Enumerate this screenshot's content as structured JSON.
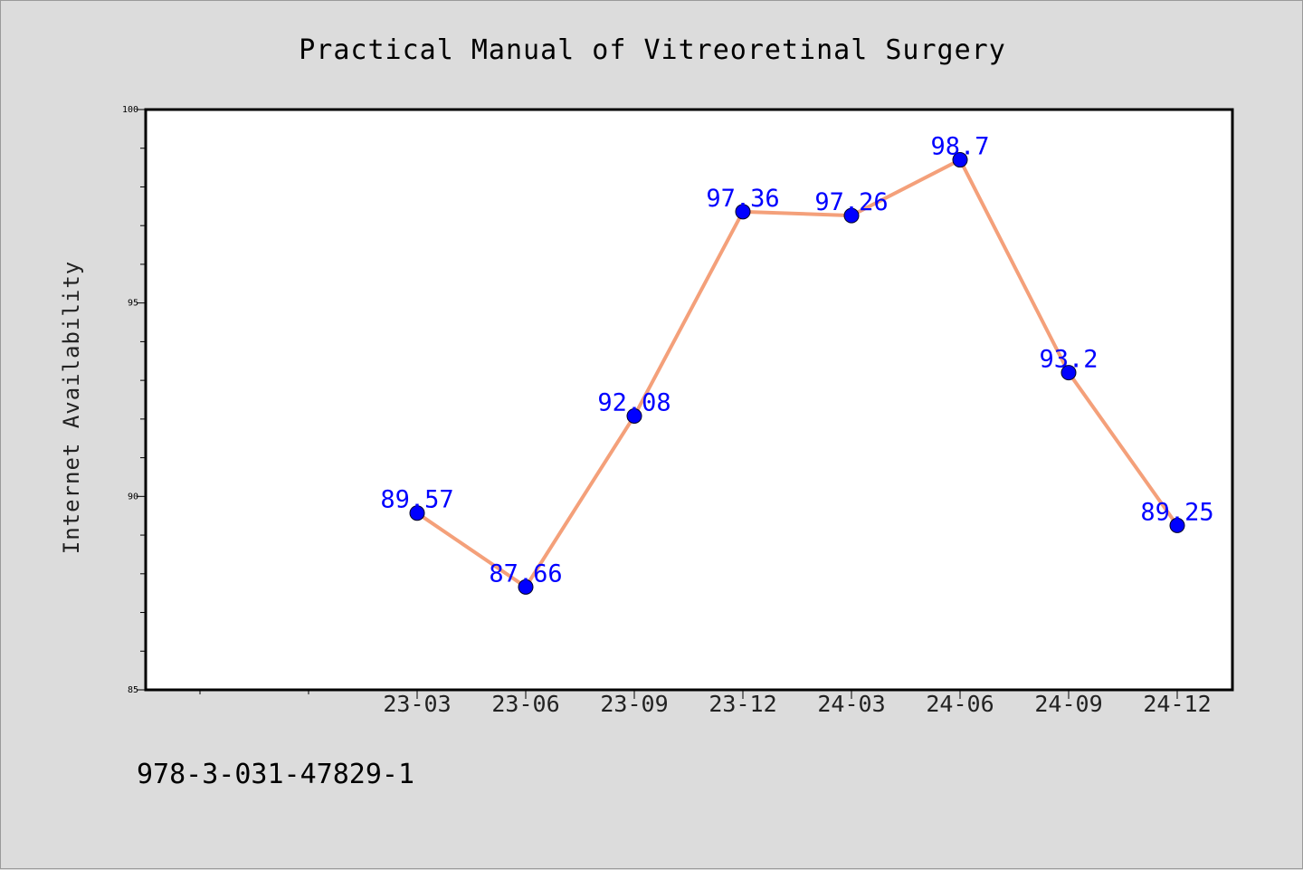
{
  "chart_data": {
    "type": "line",
    "title": "Practical Manual of Vitreoretinal Surgery",
    "xlabel": "",
    "ylabel": "Internet Availability",
    "categories": [
      "23-03",
      "23-06",
      "23-09",
      "23-12",
      "24-03",
      "24-06",
      "24-09",
      "24-12"
    ],
    "series": [
      {
        "values": [
          89.57,
          87.66,
          92.08,
          97.36,
          97.26,
          98.7,
          93.2,
          89.25
        ],
        "line_color": "#f4a07a",
        "marker_color": "#0000ff"
      }
    ],
    "data_labels": [
      "89.57",
      "87.66",
      "92.08",
      "97.36",
      "97.26",
      "98.7",
      "93.2",
      "89.25"
    ],
    "ylim": [
      85,
      100
    ],
    "yticks": [
      "85",
      "90",
      "95",
      "100"
    ],
    "grid": false,
    "legend": "none"
  },
  "footer_text": "978-3-031-47829-1",
  "colors": {
    "background": "#dcdcdc",
    "plot_area": "#ffffff",
    "line": "#f4a07a",
    "marker": "#0000ff",
    "data_label": "#0000ff"
  }
}
